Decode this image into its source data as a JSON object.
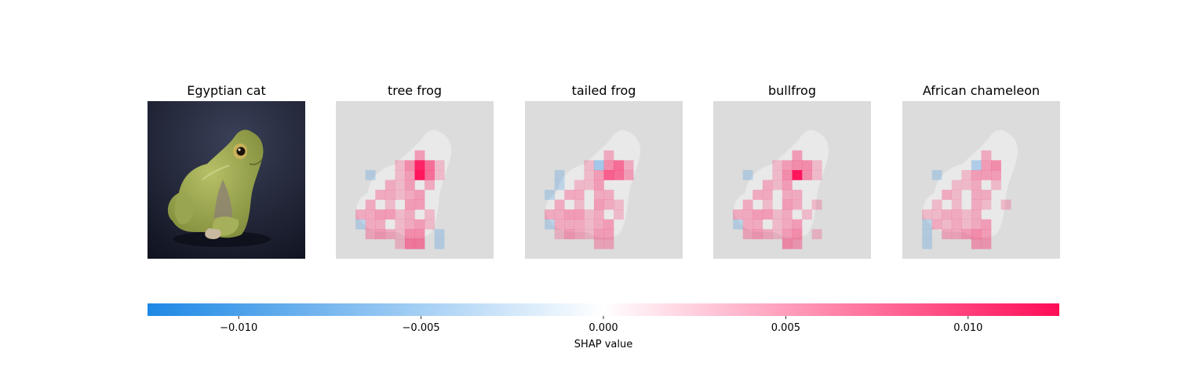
{
  "chart_data": {
    "type": "heatmap",
    "panels": [
      {
        "title": "Egyptian cat",
        "kind": "image"
      },
      {
        "title": "tree frog",
        "kind": "shap"
      },
      {
        "title": "tailed frog",
        "kind": "shap"
      },
      {
        "title": "bullfrog",
        "kind": "shap"
      },
      {
        "title": "African chameleon",
        "kind": "shap"
      }
    ],
    "grid_size": [
      16,
      16
    ],
    "shap_cells": [
      [
        [
          6,
          8,
          0.011
        ],
        [
          6,
          9,
          0.006
        ],
        [
          7,
          8,
          0.012
        ],
        [
          7,
          9,
          0.006
        ],
        [
          5,
          8,
          0.003
        ],
        [
          6,
          7,
          0.004
        ],
        [
          7,
          7,
          0.003
        ],
        [
          8,
          7,
          0.003
        ],
        [
          9,
          8,
          0.003
        ],
        [
          10,
          7,
          0.003
        ],
        [
          10,
          8,
          0.003
        ],
        [
          8,
          9,
          0.002
        ],
        [
          11,
          7,
          0.002
        ],
        [
          12,
          7,
          0.002
        ],
        [
          12,
          8,
          0.003
        ],
        [
          13,
          7,
          0.004
        ],
        [
          13,
          8,
          0.004
        ],
        [
          14,
          7,
          0.005
        ],
        [
          14,
          8,
          0.005
        ],
        [
          11,
          4,
          0.003
        ],
        [
          11,
          5,
          0.003
        ],
        [
          11,
          2,
          0.002
        ],
        [
          11,
          3,
          0.002
        ],
        [
          12,
          3,
          0.002
        ],
        [
          13,
          4,
          0.003
        ],
        [
          13,
          5,
          0.002
        ],
        [
          10,
          3,
          0.002
        ],
        [
          9,
          4,
          0.002
        ],
        [
          9,
          5,
          0.002
        ],
        [
          8,
          5,
          0.002
        ],
        [
          12,
          4,
          0.002
        ],
        [
          13,
          3,
          0.002
        ],
        [
          8,
          6,
          0.001
        ],
        [
          7,
          6,
          0.001
        ],
        [
          9,
          7,
          0.002
        ],
        [
          10,
          5,
          0.001
        ],
        [
          9,
          6,
          0.001
        ],
        [
          6,
          6,
          0.001
        ],
        [
          11,
          6,
          0.001
        ],
        [
          12,
          6,
          0.001
        ],
        [
          13,
          6,
          0.001
        ],
        [
          6,
          10,
          0.001
        ],
        [
          7,
          10,
          0.001
        ],
        [
          14,
          6,
          0.001
        ],
        [
          7,
          3,
          -0.001
        ],
        [
          12,
          2,
          -0.001
        ],
        [
          13,
          10,
          -0.001
        ],
        [
          14,
          10,
          -0.001
        ],
        [
          11,
          9,
          0.001
        ],
        [
          12,
          9,
          0.001
        ]
      ],
      [
        [
          6,
          8,
          0.004
        ],
        [
          6,
          9,
          0.006
        ],
        [
          7,
          8,
          0.007
        ],
        [
          7,
          9,
          0.006
        ],
        [
          6,
          7,
          -0.003
        ],
        [
          5,
          8,
          0.002
        ],
        [
          6,
          10,
          0.002
        ],
        [
          7,
          10,
          0.003
        ],
        [
          7,
          7,
          0.003
        ],
        [
          8,
          7,
          0.003
        ],
        [
          9,
          8,
          0.002
        ],
        [
          10,
          7,
          0.003
        ],
        [
          10,
          8,
          0.002
        ],
        [
          11,
          7,
          0.002
        ],
        [
          12,
          7,
          0.002
        ],
        [
          12,
          8,
          0.003
        ],
        [
          13,
          7,
          0.003
        ],
        [
          13,
          8,
          0.003
        ],
        [
          14,
          7,
          0.002
        ],
        [
          14,
          8,
          0.002
        ],
        [
          11,
          4,
          0.003
        ],
        [
          11,
          5,
          0.003
        ],
        [
          11,
          2,
          0.002
        ],
        [
          11,
          3,
          0.002
        ],
        [
          12,
          3,
          0.002
        ],
        [
          13,
          4,
          0.003
        ],
        [
          13,
          5,
          0.002
        ],
        [
          12,
          5,
          0.002
        ],
        [
          10,
          3,
          0.002
        ],
        [
          9,
          4,
          0.002
        ],
        [
          9,
          5,
          0.002
        ],
        [
          8,
          5,
          0.001
        ],
        [
          12,
          4,
          0.002
        ],
        [
          13,
          3,
          0.001
        ],
        [
          9,
          7,
          0.002
        ],
        [
          8,
          6,
          0.001
        ],
        [
          7,
          6,
          0.001
        ],
        [
          10,
          5,
          0.001
        ],
        [
          6,
          6,
          0.001
        ],
        [
          11,
          6,
          0.001
        ],
        [
          12,
          6,
          0.001
        ],
        [
          13,
          6,
          0.001
        ],
        [
          12,
          2,
          -0.001
        ],
        [
          7,
          3,
          -0.001
        ],
        [
          9,
          2,
          -0.001
        ],
        [
          8,
          3,
          -0.001
        ],
        [
          10,
          9,
          0.001
        ],
        [
          11,
          9,
          0.001
        ]
      ],
      [
        [
          6,
          8,
          0.004
        ],
        [
          6,
          9,
          0.004
        ],
        [
          7,
          8,
          0.012
        ],
        [
          7,
          9,
          0.004
        ],
        [
          5,
          8,
          0.003
        ],
        [
          6,
          7,
          0.003
        ],
        [
          7,
          7,
          0.004
        ],
        [
          8,
          7,
          0.003
        ],
        [
          9,
          8,
          0.002
        ],
        [
          10,
          7,
          0.003
        ],
        [
          10,
          8,
          0.002
        ],
        [
          11,
          7,
          0.002
        ],
        [
          12,
          7,
          0.002
        ],
        [
          12,
          8,
          0.003
        ],
        [
          13,
          7,
          0.003
        ],
        [
          13,
          8,
          0.004
        ],
        [
          14,
          7,
          0.004
        ],
        [
          14,
          8,
          0.003
        ],
        [
          11,
          4,
          0.003
        ],
        [
          11,
          5,
          0.003
        ],
        [
          11,
          2,
          0.002
        ],
        [
          11,
          3,
          0.002
        ],
        [
          12,
          3,
          0.002
        ],
        [
          13,
          4,
          0.003
        ],
        [
          13,
          5,
          0.002
        ],
        [
          10,
          3,
          0.002
        ],
        [
          9,
          4,
          0.002
        ],
        [
          9,
          5,
          0.002
        ],
        [
          8,
          5,
          0.002
        ],
        [
          12,
          4,
          0.002
        ],
        [
          13,
          3,
          0.002
        ],
        [
          9,
          7,
          0.002
        ],
        [
          8,
          6,
          0.001
        ],
        [
          7,
          6,
          0.001
        ],
        [
          10,
          5,
          0.001
        ],
        [
          6,
          6,
          0.001
        ],
        [
          11,
          6,
          0.001
        ],
        [
          12,
          6,
          0.001
        ],
        [
          13,
          6,
          0.001
        ],
        [
          6,
          10,
          0.001
        ],
        [
          7,
          10,
          0.001
        ],
        [
          10,
          10,
          0.001
        ],
        [
          12,
          2,
          -0.001
        ],
        [
          7,
          3,
          -0.001
        ],
        [
          13,
          10,
          0.001
        ],
        [
          11,
          9,
          0.001
        ]
      ],
      [
        [
          6,
          8,
          0.003
        ],
        [
          6,
          9,
          0.004
        ],
        [
          7,
          8,
          0.003
        ],
        [
          7,
          9,
          0.003
        ],
        [
          6,
          7,
          -0.002
        ],
        [
          5,
          8,
          0.002
        ],
        [
          7,
          7,
          0.003
        ],
        [
          8,
          7,
          0.002
        ],
        [
          9,
          8,
          0.002
        ],
        [
          10,
          7,
          0.002
        ],
        [
          10,
          8,
          0.001
        ],
        [
          11,
          7,
          0.002
        ],
        [
          12,
          7,
          0.002
        ],
        [
          12,
          8,
          0.003
        ],
        [
          13,
          7,
          0.004
        ],
        [
          13,
          8,
          0.003
        ],
        [
          14,
          7,
          0.003
        ],
        [
          14,
          8,
          0.003
        ],
        [
          12,
          5,
          0.002
        ],
        [
          13,
          6,
          0.003
        ],
        [
          11,
          4,
          0.002
        ],
        [
          11,
          5,
          0.002
        ],
        [
          11,
          2,
          0.001
        ],
        [
          11,
          3,
          0.001
        ],
        [
          12,
          3,
          0.002
        ],
        [
          13,
          4,
          0.002
        ],
        [
          13,
          5,
          0.002
        ],
        [
          10,
          3,
          0.001
        ],
        [
          9,
          4,
          0.002
        ],
        [
          9,
          5,
          0.001
        ],
        [
          8,
          5,
          0.001
        ],
        [
          12,
          4,
          0.001
        ],
        [
          9,
          7,
          0.002
        ],
        [
          8,
          6,
          0.001
        ],
        [
          7,
          6,
          0.001
        ],
        [
          10,
          5,
          0.001
        ],
        [
          11,
          6,
          0.001
        ],
        [
          12,
          6,
          0.001
        ],
        [
          12,
          2,
          -0.001
        ],
        [
          7,
          3,
          -0.001
        ],
        [
          8,
          9,
          0.001
        ],
        [
          13,
          2,
          -0.001
        ],
        [
          14,
          2,
          -0.001
        ],
        [
          10,
          10,
          0.001
        ]
      ]
    ],
    "colorbar": {
      "label": "SHAP value",
      "min": -0.0125,
      "max": 0.0125,
      "ticks": [
        -0.01,
        -0.005,
        0.0,
        0.005,
        0.01
      ],
      "tick_labels": [
        "−0.010",
        "−0.005",
        "0.000",
        "0.005",
        "0.010"
      ],
      "negative_color": "#1e88e5",
      "positive_color": "#ff0d57"
    }
  }
}
